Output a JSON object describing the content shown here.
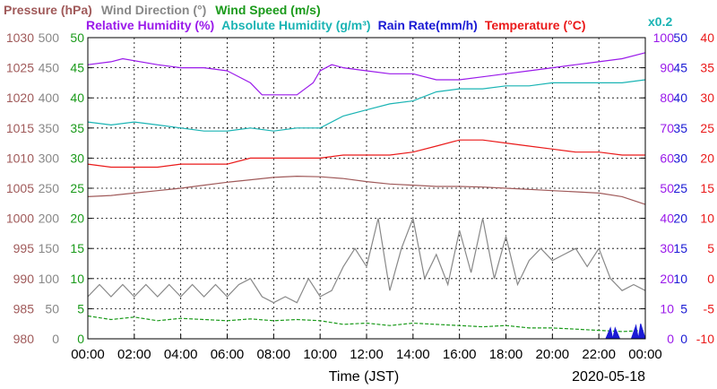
{
  "chart_data": {
    "type": "line",
    "legend_row1": [
      {
        "text": "Pressure (hPa)",
        "color": "#a05a5a"
      },
      {
        "text": "Wind Direction (°)",
        "color": "#888888"
      },
      {
        "text": "Wind Speed (m/s)",
        "color": "#1a9a1a"
      }
    ],
    "legend_row2": [
      {
        "text": "Relative Humidity (%)",
        "color": "#9a1aea"
      },
      {
        "text": "Absolute Humidity (g/m³)",
        "color": "#1ab4b4"
      },
      {
        "text": "Rain Rate(mm/h)",
        "color": "#1a1ad4"
      },
      {
        "text": "Temperature (°C)",
        "color": "#ea1a1a"
      }
    ],
    "abs_humidity_scale_note": "x0.2",
    "xlabel": "Time (JST)",
    "date": "2020-05-18",
    "x_ticks": [
      "00:00",
      "02:00",
      "04:00",
      "06:00",
      "08:00",
      "10:00",
      "12:00",
      "14:00",
      "16:00",
      "18:00",
      "20:00",
      "22:00",
      "00:00"
    ],
    "axes": {
      "pressure": {
        "color": "#a05a5a",
        "ticks": [
          "1030",
          "1025",
          "1020",
          "1015",
          "1010",
          "1005",
          "1000",
          "995",
          "990",
          "985",
          "980"
        ]
      },
      "wind_direction": {
        "color": "#888888",
        "ticks": [
          "500",
          "450",
          "400",
          "350",
          "300",
          "250",
          "200",
          "150",
          "100",
          "50",
          "0"
        ]
      },
      "wind_speed": {
        "color": "#1a9a1a",
        "ticks": [
          "50",
          "45",
          "40",
          "35",
          "30",
          "25",
          "20",
          "15",
          "10",
          "5",
          "0"
        ]
      },
      "relative_humidity": {
        "color": "#9a1aea",
        "ticks": [
          "100",
          "90",
          "80",
          "70",
          "60",
          "50",
          "40",
          "30",
          "20",
          "10",
          "0"
        ]
      },
      "rain_rate": {
        "color": "#1a1ad4",
        "ticks": [
          "50",
          "45",
          "40",
          "35",
          "30",
          "25",
          "20",
          "15",
          "10",
          "5",
          "0"
        ]
      },
      "temperature": {
        "color": "#ea1a1a",
        "ticks": [
          "40",
          "35",
          "30",
          "25",
          "20",
          "15",
          "10",
          "5",
          "0",
          "-5",
          "-10"
        ]
      }
    },
    "x_range_hours": [
      0,
      24
    ],
    "series": [
      {
        "key": "relative_humidity",
        "color": "#9a1aea",
        "axis": [
          0,
          100
        ],
        "x": [
          0,
          1,
          1.5,
          3,
          4,
          5,
          6,
          7,
          7.5,
          8,
          9,
          9.7,
          10,
          10.5,
          11,
          12,
          13,
          14,
          14.5,
          15,
          15.5,
          16,
          17,
          18,
          19,
          20,
          21,
          22,
          23,
          24
        ],
        "y": [
          91,
          92,
          93,
          91,
          90,
          90,
          89,
          85,
          81,
          81,
          81,
          85,
          89,
          91,
          90,
          89,
          88,
          88,
          87,
          86,
          86,
          86,
          87,
          88,
          89,
          90,
          91,
          92,
          93,
          95
        ]
      },
      {
        "key": "absolute_humidity",
        "color": "#1ab4b4",
        "axis": [
          0,
          100
        ],
        "x": [
          0,
          1,
          2,
          3,
          4,
          5,
          6,
          7,
          8,
          9,
          10,
          11,
          12,
          13,
          14,
          15,
          16,
          17,
          18,
          19,
          20,
          21,
          22,
          23,
          24
        ],
        "y": [
          72,
          71,
          72,
          71,
          70,
          69,
          69,
          70,
          69,
          70,
          70,
          74,
          76,
          78,
          79,
          82,
          83,
          83,
          84,
          84,
          85,
          85,
          85,
          85,
          86
        ]
      },
      {
        "key": "temperature",
        "color": "#ea1a1a",
        "axis": [
          -10,
          40
        ],
        "x": [
          0,
          1,
          2,
          3,
          4,
          5,
          6,
          7,
          8,
          9,
          10,
          11,
          12,
          13,
          14,
          15,
          16,
          17,
          18,
          19,
          20,
          21,
          22,
          23,
          24
        ],
        "y": [
          19,
          18.5,
          18.5,
          18.5,
          19,
          19,
          19,
          20,
          20,
          20,
          20,
          20.5,
          20.5,
          20.5,
          21,
          22,
          23,
          23,
          22.5,
          22,
          21.5,
          21,
          21,
          20.5,
          20.5
        ]
      },
      {
        "key": "pressure",
        "color": "#a05a5a",
        "axis": [
          980,
          1030
        ],
        "x": [
          0,
          1,
          2,
          3,
          4,
          5,
          6,
          7,
          8,
          9,
          10,
          11,
          12,
          13,
          14,
          15,
          16,
          17,
          18,
          19,
          20,
          21,
          22,
          23,
          24
        ],
        "y": [
          1003.6,
          1003.8,
          1004.2,
          1004.6,
          1005,
          1005.5,
          1006,
          1006.4,
          1006.8,
          1007,
          1006.9,
          1006.6,
          1006.1,
          1005.7,
          1005.5,
          1005.3,
          1005.3,
          1005.2,
          1005,
          1004.8,
          1004.6,
          1004.4,
          1004.2,
          1003.6,
          1002.3
        ]
      },
      {
        "key": "wind_direction",
        "color": "#888888",
        "axis": [
          0,
          500
        ],
        "x": [
          0,
          0.5,
          1,
          1.5,
          2,
          2.5,
          3,
          3.5,
          4,
          4.5,
          5,
          5.5,
          6,
          6.5,
          7,
          7.5,
          8,
          8.5,
          9,
          9.5,
          10,
          10.5,
          11,
          11.5,
          12,
          12.5,
          13,
          13.5,
          14,
          14.5,
          15,
          15.5,
          16,
          16.5,
          17,
          17.5,
          18,
          18.5,
          19,
          19.5,
          20,
          20.5,
          21,
          21.5,
          22,
          22.5,
          23,
          23.5,
          24
        ],
        "y": [
          70,
          90,
          70,
          90,
          70,
          90,
          70,
          90,
          70,
          90,
          70,
          90,
          70,
          90,
          100,
          70,
          60,
          70,
          60,
          100,
          70,
          80,
          120,
          150,
          120,
          200,
          80,
          150,
          200,
          100,
          140,
          90,
          180,
          110,
          200,
          100,
          170,
          90,
          130,
          150,
          130,
          140,
          150,
          120,
          150,
          100,
          80,
          90,
          80
        ]
      },
      {
        "key": "wind_speed",
        "color": "#1a9a1a",
        "axis": [
          0,
          50
        ],
        "x": [
          0,
          1,
          2,
          3,
          4,
          5,
          6,
          7,
          8,
          9,
          10,
          11,
          12,
          13,
          14,
          15,
          16,
          17,
          18,
          19,
          20,
          21,
          22,
          23,
          24
        ],
        "y": [
          3.8,
          3.2,
          3.6,
          3.0,
          3.4,
          3.2,
          3.0,
          3.3,
          3.0,
          3.2,
          3.0,
          2.4,
          2.6,
          2.2,
          2.6,
          2.4,
          2.2,
          2.0,
          2.2,
          1.8,
          1.8,
          1.6,
          1.4,
          1.2,
          1.4
        ]
      },
      {
        "key": "rain_rate",
        "color": "#1a1ad4",
        "axis": [
          0,
          50
        ],
        "x": [
          0,
          22.3,
          22.5,
          22.6,
          22.7,
          22.9,
          23.4,
          23.6,
          23.7,
          23.8,
          24
        ],
        "y": [
          0,
          0,
          1.8,
          0,
          1.8,
          0,
          0,
          2.2,
          0,
          2.5,
          0
        ]
      }
    ]
  }
}
